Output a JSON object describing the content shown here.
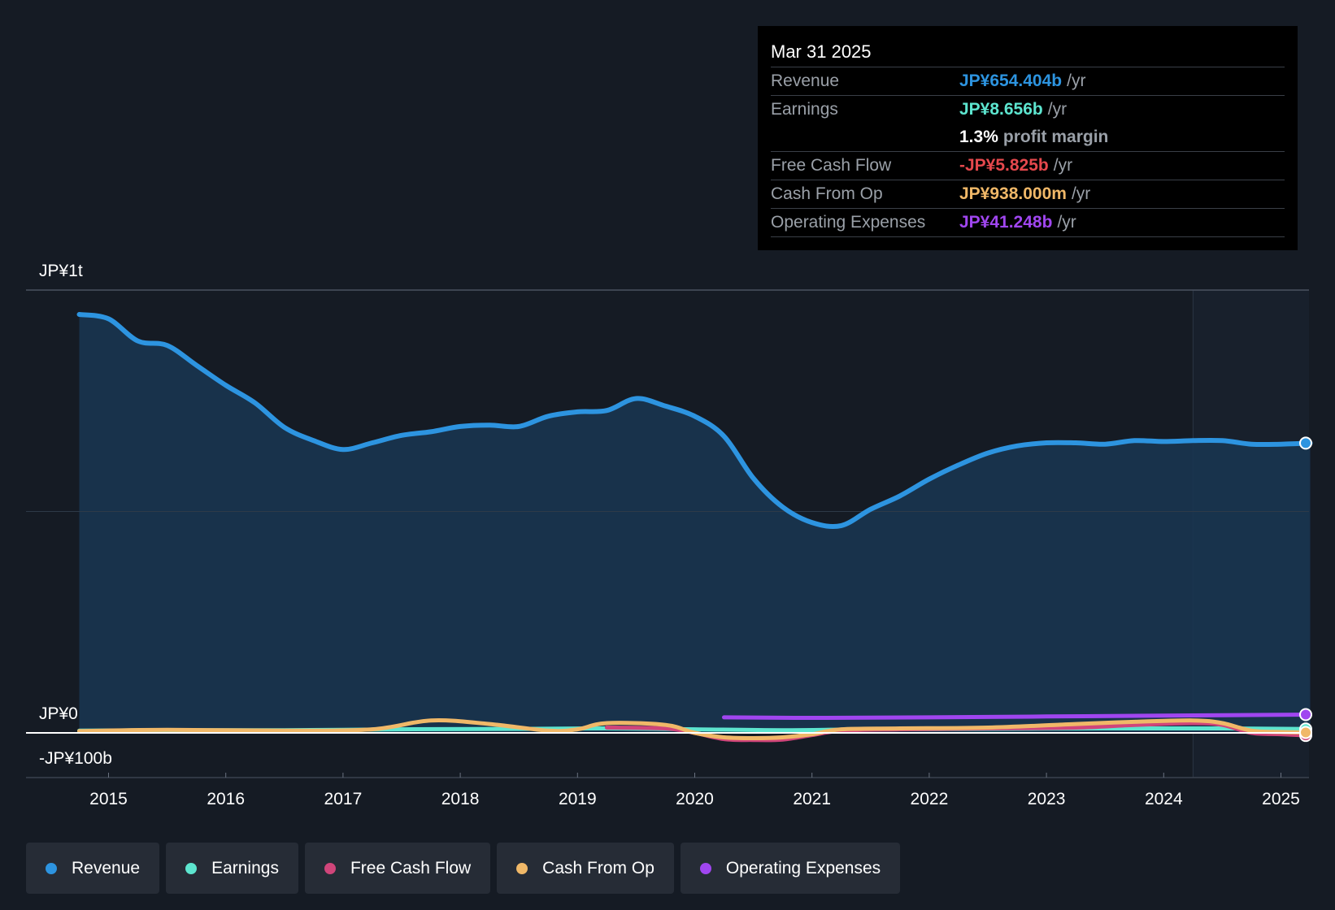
{
  "tooltip": {
    "date": "Mar 31 2025",
    "rows": [
      {
        "label": "Revenue",
        "value": "JP¥654.404b",
        "unit": "/yr",
        "color": "#2d94e0"
      },
      {
        "label": "Earnings",
        "value": "JP¥8.656b",
        "unit": "/yr",
        "color": "#5de5cf"
      },
      {
        "label": "",
        "value": "1.3%",
        "unit": "profit margin",
        "color": "#ffffff"
      },
      {
        "label": "Free Cash Flow",
        "value": "-JP¥5.825b",
        "unit": "/yr",
        "color": "#e5484d"
      },
      {
        "label": "Cash From Op",
        "value": "JP¥938.000m",
        "unit": "/yr",
        "color": "#f0b868"
      },
      {
        "label": "Operating Expenses",
        "value": "JP¥41.248b",
        "unit": "/yr",
        "color": "#a046f0"
      }
    ]
  },
  "legend": [
    {
      "label": "Revenue",
      "color": "#2d94e0"
    },
    {
      "label": "Earnings",
      "color": "#5de5cf"
    },
    {
      "label": "Free Cash Flow",
      "color": "#d0457a"
    },
    {
      "label": "Cash From Op",
      "color": "#f0b868"
    },
    {
      "label": "Operating Expenses",
      "color": "#a046f0"
    }
  ],
  "chart_data": {
    "type": "line",
    "y_tick_labels": {
      "top": "JP¥1t",
      "zero": "JP¥0",
      "bottom": "-JP¥100b"
    },
    "ylim": [
      -100,
      1000
    ],
    "y_unit": "JP¥ billions",
    "xlim": [
      2014.3,
      2025.25
    ],
    "x_ticks": [
      "2015",
      "2016",
      "2017",
      "2018",
      "2019",
      "2020",
      "2021",
      "2022",
      "2023",
      "2024",
      "2025"
    ],
    "series": [
      {
        "name": "Revenue",
        "color": "#2d94e0",
        "points": [
          [
            2014.75,
            945
          ],
          [
            2015.0,
            935
          ],
          [
            2015.25,
            885
          ],
          [
            2015.5,
            875
          ],
          [
            2015.75,
            830
          ],
          [
            2016.0,
            785
          ],
          [
            2016.25,
            745
          ],
          [
            2016.5,
            690
          ],
          [
            2016.75,
            660
          ],
          [
            2017.0,
            640
          ],
          [
            2017.25,
            655
          ],
          [
            2017.5,
            672
          ],
          [
            2017.75,
            680
          ],
          [
            2018.0,
            692
          ],
          [
            2018.25,
            695
          ],
          [
            2018.5,
            692
          ],
          [
            2018.75,
            715
          ],
          [
            2019.0,
            725
          ],
          [
            2019.25,
            728
          ],
          [
            2019.5,
            755
          ],
          [
            2019.75,
            738
          ],
          [
            2020.0,
            715
          ],
          [
            2020.25,
            670
          ],
          [
            2020.5,
            575
          ],
          [
            2020.75,
            510
          ],
          [
            2021.0,
            475
          ],
          [
            2021.25,
            468
          ],
          [
            2021.5,
            505
          ],
          [
            2021.75,
            535
          ],
          [
            2022.0,
            573
          ],
          [
            2022.25,
            605
          ],
          [
            2022.5,
            632
          ],
          [
            2022.75,
            648
          ],
          [
            2023.0,
            655
          ],
          [
            2023.25,
            655
          ],
          [
            2023.5,
            652
          ],
          [
            2023.75,
            660
          ],
          [
            2024.0,
            658
          ],
          [
            2024.25,
            660
          ],
          [
            2024.5,
            660
          ],
          [
            2024.75,
            652
          ],
          [
            2025.0,
            652
          ],
          [
            2025.25,
            654.404
          ]
        ]
      },
      {
        "name": "Earnings",
        "color": "#5de5cf",
        "points": [
          [
            2014.75,
            5
          ],
          [
            2015.5,
            6
          ],
          [
            2016.5,
            6
          ],
          [
            2017.5,
            8
          ],
          [
            2018.5,
            9
          ],
          [
            2019.25,
            10
          ],
          [
            2020.0,
            8
          ],
          [
            2020.75,
            6
          ],
          [
            2021.5,
            8
          ],
          [
            2022.5,
            9
          ],
          [
            2023.5,
            10
          ],
          [
            2024.5,
            10
          ],
          [
            2025.25,
            8.656
          ]
        ]
      },
      {
        "name": "Free Cash Flow",
        "color": "#d0457a",
        "points": [
          [
            2019.25,
            12
          ],
          [
            2019.75,
            10
          ],
          [
            2020.0,
            0
          ],
          [
            2020.25,
            -14
          ],
          [
            2020.5,
            -16
          ],
          [
            2020.75,
            -15
          ],
          [
            2021.0,
            -5
          ],
          [
            2021.25,
            5
          ],
          [
            2021.75,
            8
          ],
          [
            2022.5,
            10
          ],
          [
            2023.25,
            12
          ],
          [
            2023.75,
            18
          ],
          [
            2024.25,
            22
          ],
          [
            2024.5,
            18
          ],
          [
            2024.75,
            0
          ],
          [
            2025.0,
            -3
          ],
          [
            2025.25,
            -5.825
          ]
        ]
      },
      {
        "name": "Cash From Op",
        "color": "#f0b868",
        "points": [
          [
            2014.75,
            4
          ],
          [
            2015.5,
            7
          ],
          [
            2016.5,
            5
          ],
          [
            2017.25,
            8
          ],
          [
            2017.75,
            28
          ],
          [
            2018.25,
            20
          ],
          [
            2018.75,
            5
          ],
          [
            2019.0,
            8
          ],
          [
            2019.25,
            22
          ],
          [
            2019.75,
            18
          ],
          [
            2020.0,
            0
          ],
          [
            2020.25,
            -10
          ],
          [
            2020.5,
            -12
          ],
          [
            2020.75,
            -10
          ],
          [
            2021.0,
            -3
          ],
          [
            2021.25,
            8
          ],
          [
            2021.75,
            10
          ],
          [
            2022.5,
            12
          ],
          [
            2023.25,
            20
          ],
          [
            2023.75,
            25
          ],
          [
            2024.25,
            28
          ],
          [
            2024.5,
            22
          ],
          [
            2024.75,
            5
          ],
          [
            2025.0,
            2
          ],
          [
            2025.25,
            0.938
          ]
        ]
      },
      {
        "name": "Operating Expenses",
        "color": "#a046f0",
        "points": [
          [
            2020.25,
            35
          ],
          [
            2021.0,
            34
          ],
          [
            2022.0,
            35
          ],
          [
            2023.0,
            37
          ],
          [
            2024.0,
            39
          ],
          [
            2025.25,
            41.248
          ]
        ]
      }
    ],
    "highlight_start": 2024.25
  }
}
